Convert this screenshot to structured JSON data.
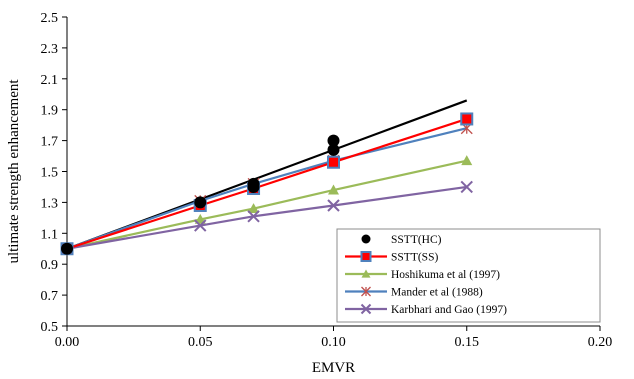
{
  "chart_data": {
    "type": "scatter",
    "title": "",
    "xlabel": "EMVR",
    "ylabel": "ultimate strength enhancement",
    "xlim": [
      0,
      0.2
    ],
    "ylim": [
      0.5,
      2.5
    ],
    "xticks": [
      0,
      0.05,
      0.1,
      0.15,
      0.2
    ],
    "yticks": [
      0.5,
      0.7,
      0.9,
      1.1,
      1.3,
      1.5,
      1.7,
      1.9,
      2.1,
      2.3,
      2.5
    ],
    "xtick_labels": [
      "0.00",
      "0.05",
      "0.10",
      "0.15",
      "0.20"
    ],
    "ytick_labels": [
      "0.5",
      "0.7",
      "0.9",
      "1.1",
      "1.3",
      "1.5",
      "1.7",
      "1.9",
      "2.1",
      "2.3",
      "2.5"
    ],
    "grid": false,
    "legend_position": "bottom-right",
    "series": [
      {
        "name": "SSTT(HC)",
        "kind": "points",
        "marker": "circle",
        "color": "#000000",
        "x": [
          0,
          0.05,
          0.07,
          0.07,
          0.1,
          0.1
        ],
        "y": [
          1.0,
          1.3,
          1.42,
          1.4,
          1.7,
          1.64
        ]
      },
      {
        "name": "SSTT(SS)",
        "kind": "line-marker",
        "marker": "square",
        "color": "#ff0000",
        "marker_fill": "#ff0000",
        "marker_edge": "#4f81bd",
        "x": [
          0,
          0.05,
          0.07,
          0.1,
          0.15
        ],
        "y": [
          1.0,
          1.28,
          1.39,
          1.56,
          1.84
        ]
      },
      {
        "name": "Hoshikuma et al (1997)",
        "kind": "line-marker",
        "marker": "triangle",
        "color": "#9bbb59",
        "x": [
          0,
          0.05,
          0.07,
          0.1,
          0.15
        ],
        "y": [
          1.0,
          1.19,
          1.26,
          1.38,
          1.57
        ]
      },
      {
        "name": "Mander et al (1988)",
        "kind": "line-marker",
        "marker": "asterisk",
        "color": "#4f81bd",
        "marker_color": "#c0504d",
        "x": [
          0,
          0.05,
          0.07,
          0.1,
          0.15
        ],
        "y": [
          1.0,
          1.31,
          1.42,
          1.57,
          1.78
        ]
      },
      {
        "name": "Karbhari and Gao (1997)",
        "kind": "line-marker",
        "marker": "x",
        "color": "#8064a2",
        "x": [
          0,
          0.05,
          0.07,
          0.1,
          0.15
        ],
        "y": [
          1.0,
          1.15,
          1.21,
          1.28,
          1.4
        ]
      },
      {
        "name": "",
        "kind": "line",
        "color": "#000000",
        "x": [
          0,
          0.15
        ],
        "y": [
          1.0,
          1.96
        ]
      }
    ]
  }
}
